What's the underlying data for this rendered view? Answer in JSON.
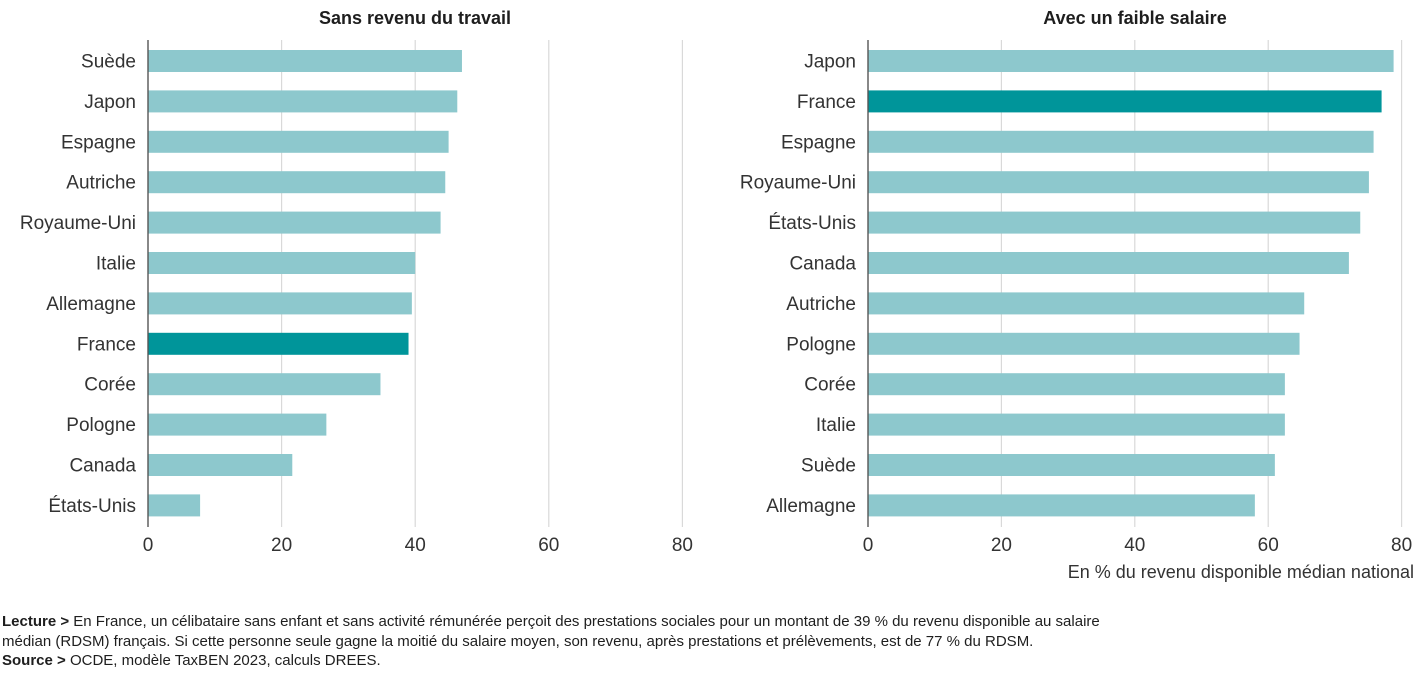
{
  "chart_data": [
    {
      "type": "bar",
      "orientation": "horizontal",
      "title": "Sans revenu du travail",
      "categories": [
        "Suède",
        "Japon",
        "Espagne",
        "Autriche",
        "Royaume-Uni",
        "Italie",
        "Allemagne",
        "France",
        "Corée",
        "Pologne",
        "Canada",
        "États-Unis"
      ],
      "values": [
        47,
        46.3,
        45,
        44.5,
        43.8,
        40,
        39.5,
        39,
        34.8,
        26.7,
        21.6,
        7.8
      ],
      "highlight": "France",
      "xlim": [
        0,
        80
      ],
      "xticks": [
        0,
        20,
        40,
        60,
        80
      ],
      "xlabel": "",
      "grid": "vertical"
    },
    {
      "type": "bar",
      "orientation": "horizontal",
      "title": "Avec un faible salaire",
      "categories": [
        "Japon",
        "France",
        "Espagne",
        "Royaume-Uni",
        "États-Unis",
        "Canada",
        "Autriche",
        "Pologne",
        "Corée",
        "Italie",
        "Suède",
        "Allemagne"
      ],
      "values": [
        78.8,
        77,
        75.8,
        75.1,
        73.8,
        72.1,
        65.4,
        64.7,
        62.5,
        62.5,
        61,
        58
      ],
      "highlight": "France",
      "xlim": [
        0,
        80
      ],
      "xticks": [
        0,
        20,
        40,
        60,
        80
      ],
      "xlabel": "En % du revenu disponible médian national",
      "grid": "vertical"
    }
  ],
  "colors": {
    "bar": "#8dc8cd",
    "highlight": "#00959a",
    "grid": "#d9d9d9",
    "axis": "#555555"
  },
  "notes": {
    "lecture_label": "Lecture >",
    "lecture_text_1": "En France, un célibataire sans enfant et sans activité rémunérée perçoit des prestations sociales pour un montant de 39 % du revenu disponible au salaire",
    "lecture_text_2": "médian (RDSM) français. Si cette personne seule gagne la moitié du salaire moyen, son revenu, après prestations et prélèvements, est de 77 % du RDSM.",
    "source_label": "Source >",
    "source_text": "OCDE, modèle TaxBEN 2023, calculs DREES."
  }
}
